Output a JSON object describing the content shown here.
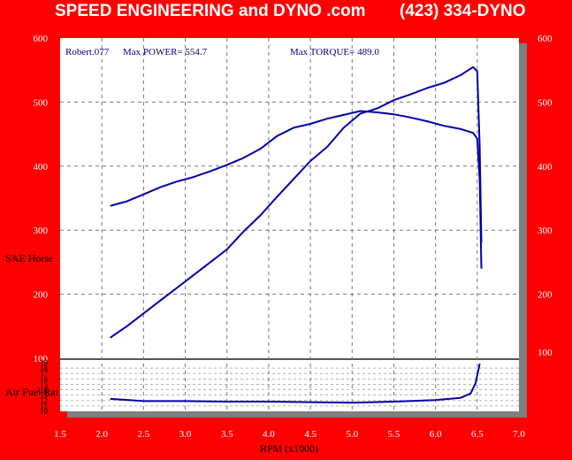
{
  "header": {
    "company": "SPEED ENGINEERING and DYNO .com",
    "phone": "(423) 334-DYNO"
  },
  "colors": {
    "background": "#ff0000",
    "plot_background": "#ffffff",
    "curve": "#0000a8",
    "shadow": "#808080"
  },
  "chart_data": [
    {
      "type": "line",
      "title": "",
      "annotations": {
        "run": "Robert.077",
        "max_power": "Max POWER= 554.7",
        "max_torque": "Max TORQUE= 489.0"
      },
      "xlabel": "RPM (x1000)",
      "ylabel": "SAE Horse",
      "xlim": [
        1.5,
        7.0
      ],
      "ylim": [
        50,
        600
      ],
      "x_ticks": [
        "1.5",
        "2.0",
        "2.5",
        "3.0",
        "3.5",
        "4.0",
        "4.5",
        "5.0",
        "5.5",
        "6.0",
        "6.5",
        "7.0"
      ],
      "y_ticks_left": [
        "600",
        "500",
        "400",
        "300",
        "200",
        "100"
      ],
      "y_ticks_right": [
        "600",
        "500",
        "400",
        "300",
        "200",
        "100"
      ],
      "grid": true,
      "series": [
        {
          "x": [
            2.1,
            2.3,
            2.5,
            2.7,
            2.9,
            3.1,
            3.3,
            3.5,
            3.7,
            3.9,
            4.1,
            4.3,
            4.5,
            4.7,
            4.9,
            5.1,
            5.3,
            5.5,
            5.7,
            5.9,
            6.1,
            6.3,
            6.45,
            6.5,
            6.53,
            6.55
          ],
          "values": [
            338,
            345,
            356,
            367,
            376,
            383,
            392,
            402,
            413,
            427,
            447,
            460,
            466,
            474,
            480,
            486,
            484,
            481,
            476,
            470,
            463,
            458,
            452,
            443,
            380,
            240
          ]
        },
        {
          "x": [
            2.1,
            2.3,
            2.5,
            2.7,
            2.9,
            3.1,
            3.3,
            3.5,
            3.7,
            3.9,
            4.1,
            4.3,
            4.5,
            4.7,
            4.9,
            5.1,
            5.3,
            5.5,
            5.7,
            5.9,
            6.1,
            6.3,
            6.45,
            6.5,
            6.53,
            6.55
          ],
          "values": [
            132,
            150,
            170,
            190,
            210,
            230,
            250,
            270,
            298,
            323,
            352,
            380,
            408,
            430,
            460,
            482,
            490,
            503,
            512,
            522,
            530,
            542,
            554.7,
            548,
            430,
            280
          ]
        }
      ]
    },
    {
      "type": "line",
      "title": "",
      "ylabel": "Air Fuel Rat",
      "ylim": [
        10,
        19
      ],
      "y_ticks": [
        "10",
        "11",
        "12",
        "13",
        "14",
        "15",
        "16",
        "17",
        "18",
        "19"
      ],
      "grid": true,
      "series": [
        {
          "x": [
            2.1,
            2.5,
            3.0,
            3.5,
            4.0,
            4.5,
            5.0,
            5.5,
            6.0,
            6.3,
            6.42,
            6.48,
            6.53
          ],
          "values": [
            12.3,
            11.9,
            11.9,
            11.8,
            11.8,
            11.7,
            11.6,
            11.8,
            12.1,
            12.5,
            13.3,
            15.2,
            18.8
          ]
        }
      ]
    }
  ]
}
